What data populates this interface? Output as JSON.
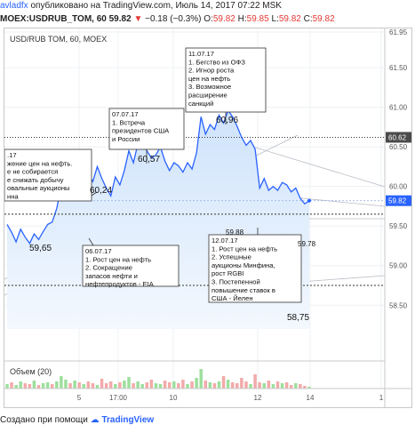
{
  "header": {
    "author": "avladfx",
    "published_text": "опубликовано на TradingView.com, Июль 14, 2017 07:22 MSK"
  },
  "symbol_line": {
    "symbol": "MOEX:USDRUB_TOM, 60",
    "last": "59.82",
    "change": "−0.18 (−0.3%)",
    "open_label": "O:",
    "open": "59.82",
    "high_label": "H:",
    "high": "59.85",
    "low_label": "L:",
    "low": "59.82",
    "close_label": "C:",
    "close": "59.82"
  },
  "footer": {
    "created_text": "Создано при помощи",
    "brand": "TradingView"
  },
  "chart_data": {
    "type": "area",
    "title": "USD/RUB TOM, 60, MOEX",
    "volume_label": "Объем (20)",
    "y_ticks": [
      "61.95",
      "61.50",
      "61.00",
      "60.50",
      "60.00",
      "59.50",
      "59.00",
      "58.50"
    ],
    "y_range": [
      58.2,
      61.95
    ],
    "x_ticks": [
      "5",
      "17:00",
      "10",
      "12",
      "14",
      "1"
    ],
    "price_label_dotted": "60.62",
    "price_label_last": "59.82",
    "colors": {
      "line": "#2962ff",
      "area_top": "#cfe3fb",
      "area_bottom": "#f3f8fe",
      "marker": "#e53935",
      "up_volume": "#9ddf9d",
      "down_volume": "#f3aaaa"
    },
    "series": [
      {
        "values": [
          59.52,
          59.42,
          59.3,
          59.46,
          59.36,
          59.28,
          59.4,
          59.33,
          59.43,
          59.52,
          59.55,
          59.72,
          60.0,
          60.12,
          59.98,
          60.22,
          60.08,
          60.24,
          60.16,
          60.06,
          60.25,
          60.1,
          59.98,
          59.88,
          60.12,
          60.02,
          60.2,
          60.45,
          60.3,
          60.54,
          60.57,
          60.45,
          60.36,
          60.4,
          60.5,
          60.32,
          60.2,
          60.3,
          60.26,
          60.18,
          60.3,
          60.22,
          60.42,
          60.88,
          60.66,
          60.78,
          60.72,
          60.9,
          60.8,
          60.96,
          60.88,
          60.76,
          60.62,
          60.52,
          60.58,
          60.47,
          59.98,
          60.1,
          59.95,
          60.0,
          59.95,
          60.05,
          60.02,
          59.93,
          59.98,
          59.85,
          59.78,
          59.82
        ]
      }
    ],
    "annotations": [
      {
        "type": "value",
        "text": "60,24",
        "x_index": 17,
        "y": 60.24
      },
      {
        "type": "value",
        "text": "60,57",
        "x_index": 30,
        "y": 60.57
      },
      {
        "type": "value",
        "text": "60,96",
        "x_index": 49,
        "y": 60.96
      },
      {
        "type": "value",
        "text": "59,65",
        "x_index": 4,
        "y": 59.65
      },
      {
        "type": "value",
        "text": "59.88",
        "x_index": 57,
        "y": 59.88
      },
      {
        "type": "value",
        "text": "59.78",
        "x_index": 66,
        "y": 59.78
      },
      {
        "type": "value",
        "text": "58,75",
        "x_index": 62,
        "y": 58.75
      }
    ],
    "callouts": [
      {
        "lines": [
          ".17",
          "жение цен на нефть.",
          "е не собирается",
          "е снижать добычу",
          "овальные аукционы",
          "нна"
        ]
      },
      {
        "lines": [
          "07.07.17",
          "1. Встреча",
          "президентов США",
          "и России"
        ]
      },
      {
        "lines": [
          "11.07.17",
          "1. Бегство из ОФЗ",
          "2. Игнор роста",
          "цен на нефть",
          "3. Возможное",
          "расширение",
          "санкций"
        ]
      },
      {
        "lines": [
          "06.07.17",
          "1. Рост цен на нефть",
          "2. Сокращение",
          "запасов нефти и",
          "нефтепродуктов - EIA"
        ]
      },
      {
        "lines": [
          "12.07.17",
          "1. Рост цен на нефть",
          "2. Успешные",
          "аукционы Минфина,",
          "рост RGBI",
          "3. Постепенной",
          "повышение ставок в",
          "США - Йелен"
        ]
      }
    ],
    "volume": [
      5,
      7,
      4,
      8,
      6,
      5,
      9,
      4,
      6,
      7,
      5,
      8,
      14,
      10,
      6,
      9,
      7,
      5,
      8,
      6,
      4,
      11,
      6,
      8,
      5,
      7,
      9,
      13,
      6,
      8,
      5,
      7,
      10,
      6,
      5,
      9,
      7,
      8,
      6,
      10,
      5,
      8,
      12,
      22,
      9,
      7,
      6,
      8,
      14,
      10,
      7,
      6,
      12,
      8,
      5,
      16,
      7,
      6,
      9,
      5,
      8,
      6,
      7,
      4,
      6,
      5,
      3,
      2
    ],
    "volume_up": [
      true,
      false,
      true,
      true,
      false,
      false,
      true,
      false,
      true,
      true,
      false,
      true,
      true,
      true,
      false,
      true,
      false,
      true,
      false,
      false,
      true,
      false,
      false,
      false,
      true,
      false,
      true,
      true,
      false,
      true,
      true,
      false,
      false,
      true,
      true,
      false,
      false,
      true,
      false,
      false,
      true,
      false,
      true,
      true,
      false,
      true,
      false,
      true,
      false,
      true,
      false,
      false,
      false,
      false,
      true,
      false,
      false,
      true,
      false,
      true,
      false,
      true,
      false,
      false,
      true,
      false,
      false,
      true
    ]
  }
}
